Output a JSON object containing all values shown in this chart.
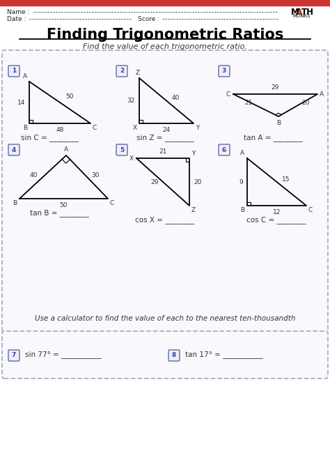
{
  "title": "Finding Trigonometric Ratios",
  "subtitle": "Find the value of each trigonometric ratio.",
  "instruction": "Use a calculator to find the value of each to the nearest ten-thousandth",
  "q1_label": "sin C = ________",
  "q2_label": "sin Z = ________",
  "q3_label": "tan A = ________",
  "q4_label": "tan B = ________",
  "q5_label": "cos X = ________",
  "q6_label": "cos C = ________",
  "q7_label": "sin 77° = ___________",
  "q8_label": "tan 17° = ___________",
  "bg_color": "#ffffff",
  "dash_box_color": "#aaaacc",
  "num_box_edge": "#6666aa",
  "num_box_face": "#eeeef8",
  "num_box_text": "#3344aa",
  "top_bar_color": "#cc3333",
  "title_underline": "#000000",
  "tri_color": "#000000",
  "label_color": "#333333"
}
